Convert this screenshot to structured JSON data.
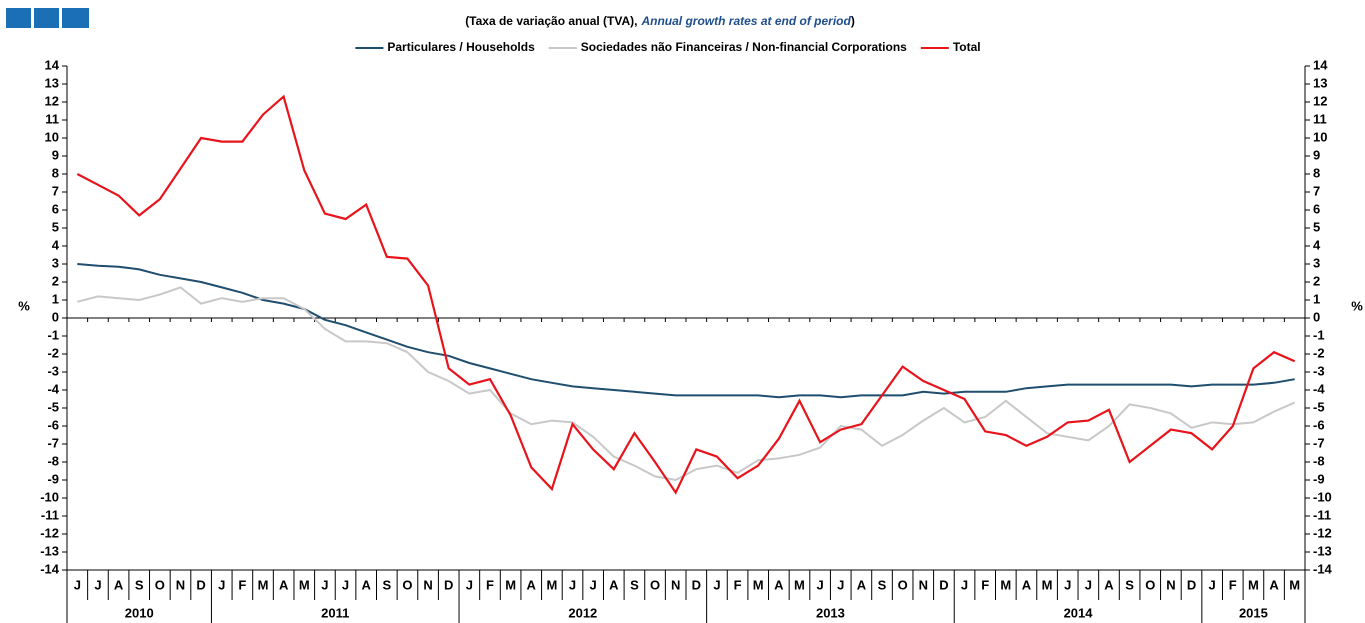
{
  "chart_data": {
    "type": "line",
    "subtitle_parts": [
      "(Taxa de variação anual (TVA),",
      "Annual growth rates at end of period",
      ")"
    ],
    "y_label": "%",
    "categories": [
      "J",
      "J",
      "A",
      "S",
      "O",
      "N",
      "D",
      "J",
      "F",
      "M",
      "A",
      "M",
      "J",
      "J",
      "A",
      "S",
      "O",
      "N",
      "D",
      "J",
      "F",
      "M",
      "A",
      "M",
      "J",
      "J",
      "A",
      "S",
      "O",
      "N",
      "D",
      "J",
      "F",
      "M",
      "A",
      "M",
      "J",
      "J",
      "A",
      "S",
      "O",
      "N",
      "D",
      "J",
      "F",
      "M",
      "A",
      "M",
      "J",
      "J",
      "A",
      "S",
      "O",
      "N",
      "D",
      "J",
      "F",
      "M",
      "A",
      "M"
    ],
    "years": [
      "2010",
      "2011",
      "2012",
      "2013",
      "2014",
      "2015"
    ],
    "ylim": [
      -14,
      14
    ],
    "yticks": [
      -14,
      -13,
      -12,
      -11,
      -10,
      -9,
      -8,
      -7,
      -6,
      -5,
      -4,
      -3,
      -2,
      -1,
      0,
      1,
      2,
      3,
      4,
      5,
      6,
      7,
      8,
      9,
      10,
      11,
      12,
      13,
      14
    ],
    "series": [
      {
        "name": "Particulares / Households",
        "color": "#1f4e6e",
        "values": [
          3.0,
          2.9,
          2.85,
          2.7,
          2.4,
          2.2,
          2.0,
          1.7,
          1.4,
          1.0,
          0.8,
          0.5,
          -0.1,
          -0.4,
          -0.8,
          -1.2,
          -1.6,
          -1.9,
          -2.1,
          -2.5,
          -2.8,
          -3.1,
          -3.4,
          -3.6,
          -3.8,
          -3.9,
          -4.0,
          -4.1,
          -4.2,
          -4.3,
          -4.3,
          -4.3,
          -4.3,
          -4.3,
          -4.4,
          -4.3,
          -4.3,
          -4.4,
          -4.3,
          -4.3,
          -4.3,
          -4.1,
          -4.2,
          -4.1,
          -4.1,
          -4.1,
          -3.9,
          -3.8,
          -3.7,
          -3.7,
          -3.7,
          -3.7,
          -3.7,
          -3.7,
          -3.8,
          -3.7,
          -3.7,
          -3.7,
          -3.6,
          -3.4
        ]
      },
      {
        "name": "Sociedades não Financeiras / Non-financial Corporations",
        "color": "#c8c8c8",
        "values": [
          0.9,
          1.2,
          1.1,
          1.0,
          1.3,
          1.7,
          0.8,
          1.1,
          0.9,
          1.1,
          1.1,
          0.5,
          -0.6,
          -1.3,
          -1.3,
          -1.4,
          -1.9,
          -3.0,
          -3.5,
          -4.2,
          -4.0,
          -5.3,
          -5.9,
          -5.7,
          -5.8,
          -6.6,
          -7.7,
          -8.2,
          -8.8,
          -9.0,
          -8.4,
          -8.2,
          -8.6,
          -7.9,
          -7.8,
          -7.6,
          -7.2,
          -6.0,
          -6.2,
          -7.1,
          -6.5,
          -5.7,
          -5.0,
          -5.8,
          -5.5,
          -4.6,
          -5.5,
          -6.4,
          -6.6,
          -6.8,
          -6.0,
          -4.8,
          -5.0,
          -5.3,
          -6.1,
          -5.8,
          -5.9,
          -5.8,
          -5.2,
          -4.7
        ]
      },
      {
        "name": "Total",
        "color": "#e8141c",
        "values": [
          8.0,
          7.4,
          6.8,
          5.7,
          6.6,
          8.3,
          10.0,
          9.8,
          9.8,
          11.3,
          12.3,
          8.2,
          5.8,
          5.5,
          6.3,
          3.4,
          3.3,
          1.8,
          -2.8,
          -3.7,
          -3.4,
          -5.4,
          -8.3,
          -9.5,
          -5.9,
          -7.3,
          -8.4,
          -6.4,
          -8.0,
          -9.7,
          -7.3,
          -7.7,
          -8.9,
          -8.2,
          -6.7,
          -4.6,
          -6.9,
          -6.2,
          -5.9,
          -4.3,
          -2.7,
          -3.5,
          -4.0,
          -4.5,
          -6.3,
          -6.5,
          -7.1,
          -6.6,
          -5.8,
          -5.7,
          -5.1,
          -8.0,
          -7.1,
          -6.2,
          -6.4,
          -7.3,
          -6.0,
          -2.8,
          -1.9,
          -2.4
        ]
      }
    ]
  }
}
